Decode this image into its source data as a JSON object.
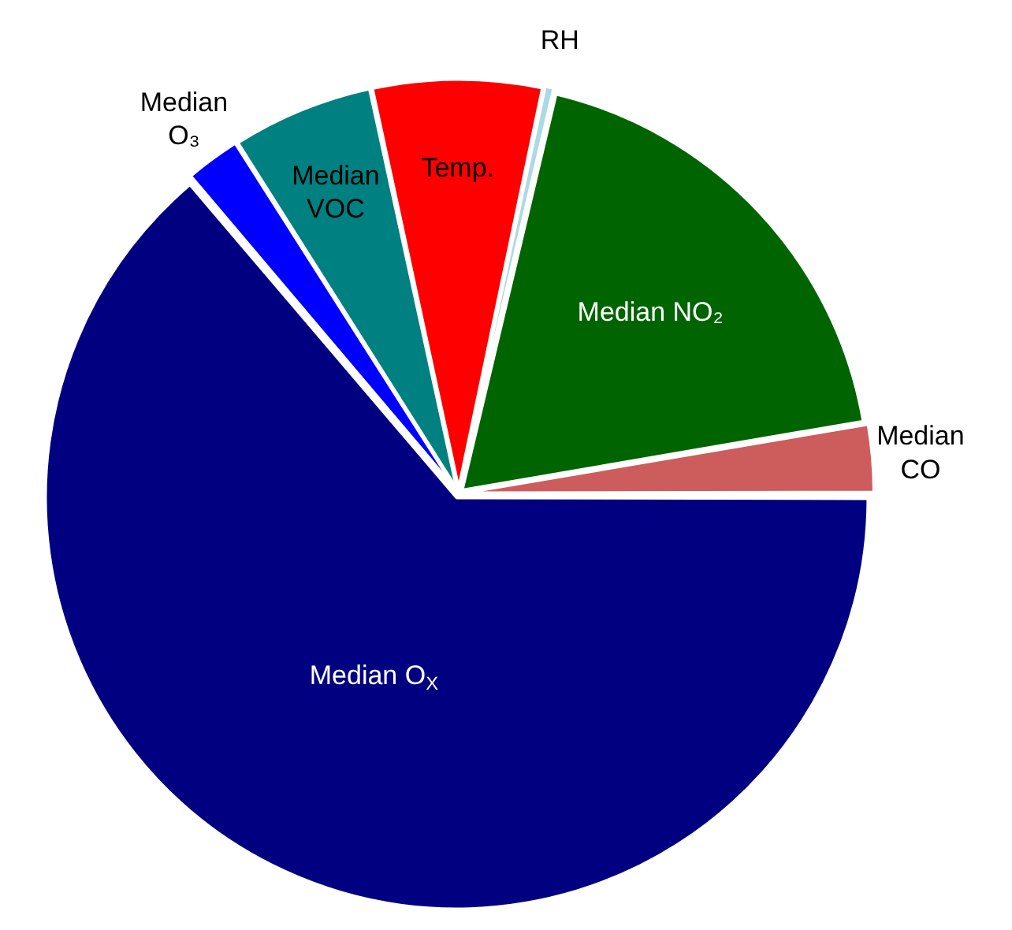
{
  "chart_data": {
    "type": "pie",
    "categories": [
      "Median O$_{X}$",
      "Median O₃",
      "Median VOC",
      "Temp.",
      "RH",
      "Median NO₂",
      "Median CO"
    ],
    "values": [
      63.8,
      2.2,
      5.6,
      6.7,
      0.4,
      18.6,
      2.7
    ],
    "colors": [
      "#000080",
      "#0000ff",
      "#008080",
      "#ff0000",
      "#add8e6",
      "#006400",
      "#cd5c5c"
    ],
    "legend": false
  }
}
